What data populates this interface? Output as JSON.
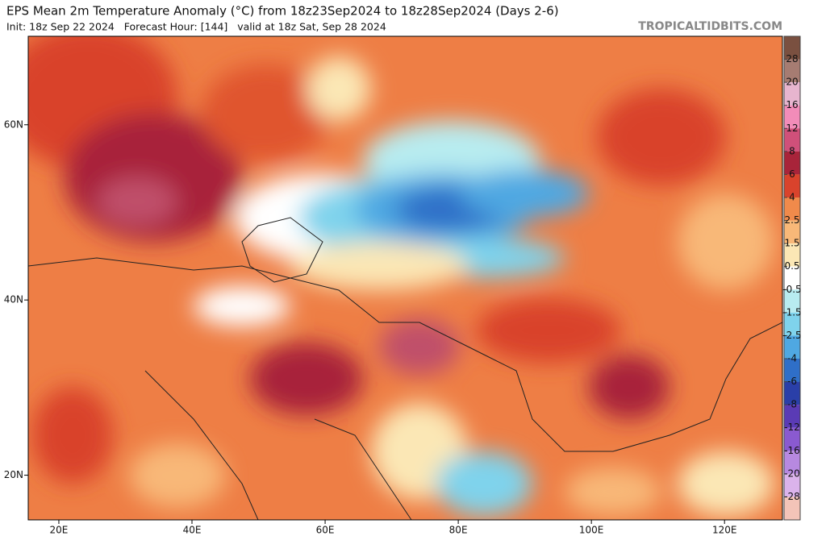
{
  "header": {
    "title": "EPS Mean 2m Temperature Anomaly (°C) from 18z23Sep2024 to 18z28Sep2024 (Days 2-6)",
    "subtitle": "Init: 18z Sep 22 2024   Forecast Hour: [144]   valid at 18z Sat, Sep 28 2024",
    "watermark": "TROPICALTIDBITS.COM"
  },
  "map": {
    "lon_range": [
      15.4,
      128.7
    ],
    "lat_range": [
      14.9,
      70.1
    ],
    "lon_ticks": [
      {
        "value": 20,
        "label": "20E"
      },
      {
        "value": 40,
        "label": "40E"
      },
      {
        "value": 60,
        "label": "60E"
      },
      {
        "value": 80,
        "label": "80E"
      },
      {
        "value": 100,
        "label": "100E"
      },
      {
        "value": 120,
        "label": "120E"
      }
    ],
    "lat_ticks": [
      {
        "value": 60,
        "label": "60N"
      },
      {
        "value": 40,
        "label": "40N"
      },
      {
        "value": 20,
        "label": "20N"
      }
    ]
  },
  "colorbar": {
    "labels": [
      28,
      20,
      16,
      12,
      8,
      6,
      4,
      2.5,
      1.5,
      0.5,
      -0.5,
      -1.5,
      -2.5,
      -4,
      -6,
      -8,
      -12,
      -16,
      -20,
      -28
    ],
    "colors": [
      "#7a5040",
      "#a67c72",
      "#e7b5cf",
      "#f28cb9",
      "#d0507a",
      "#a8243a",
      "#d9432c",
      "#f08a4b",
      "#f8b878",
      "#fbe7b5",
      "#ffffff",
      "#b8ecf0",
      "#7fd3ec",
      "#4fa8e2",
      "#2f6fc8",
      "#2a3fa8",
      "#5a3bb5",
      "#8a5ad0",
      "#b789e0",
      "#dbb3eb",
      "#f3c4b8"
    ]
  }
}
